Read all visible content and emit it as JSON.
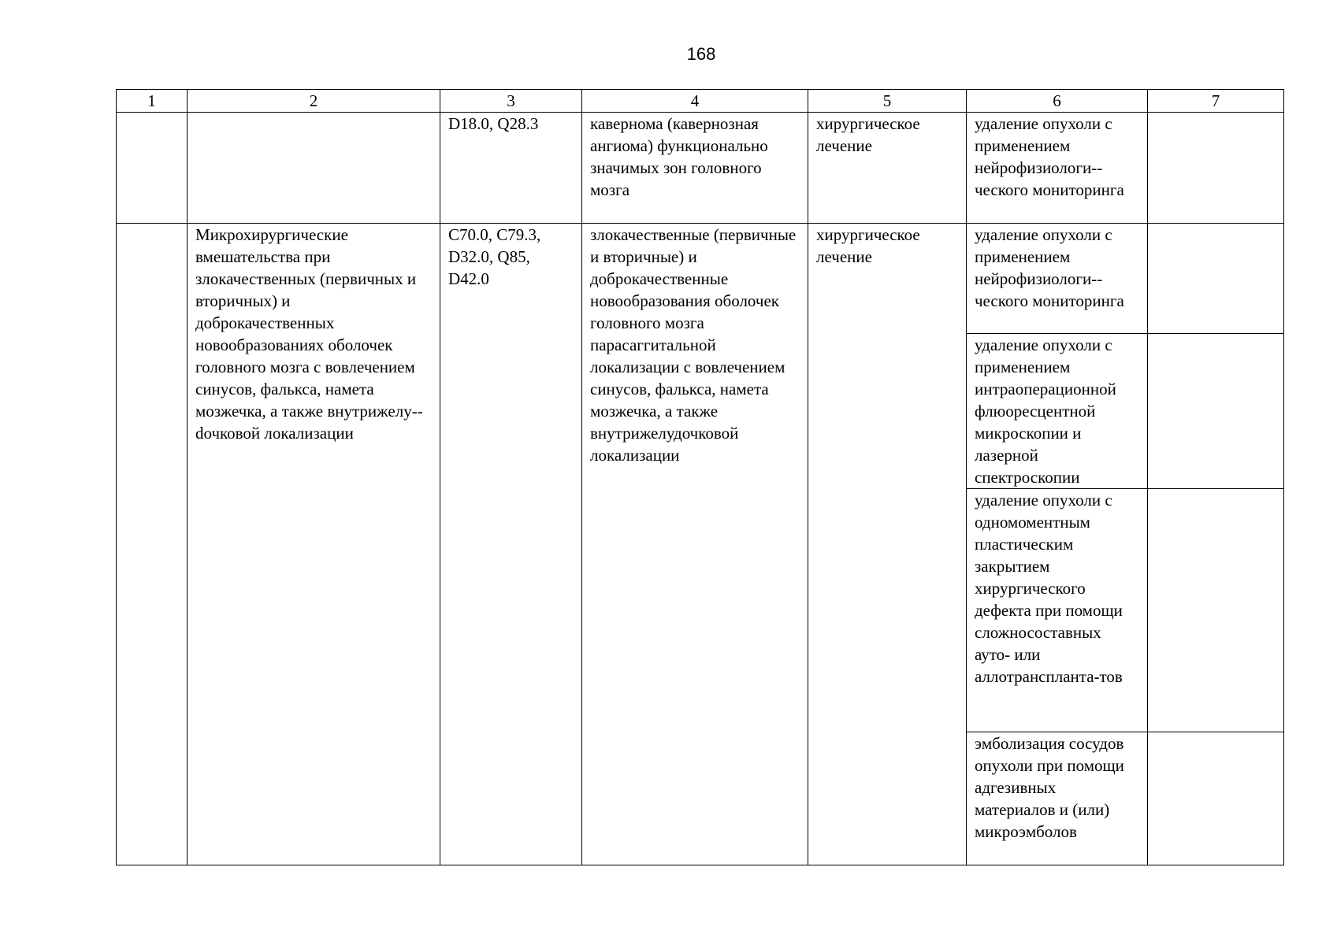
{
  "page_number": "168",
  "headers": [
    "1",
    "2",
    "3",
    "4",
    "5",
    "6",
    "7"
  ],
  "row1": {
    "c3": "D18.0, Q28.3",
    "c4": "кавернома (кавернозная ангиома) функционально значимых зон головного мозга",
    "c5": "хирургическое лечение",
    "c6": "удаление опухоли с применением нейрофизиологи-­ческого мониторинга"
  },
  "row2": {
    "c2": "Микрохирургические вмешательства при злокачественных (первичных и вторичных) и доброкачественных новообразованиях оболочек головного мозга с вовлечением синусов, фалькса, намета мозжечка, а также внутрижелу-­dочковой локализации",
    "c3": "C70.0, C79.3, D32.0, Q85, D42.0",
    "c4": "злокачественные (первичные и вторичные) и доброкачественные новообразования оболочек головного мозга парасаггитальной локализации с вовлечением синусов, фалькса, намета мозжечка, а также внутрижелудочковой локализации",
    "c5": "хирургическое лечение",
    "c6": [
      "удаление опухоли с применением нейрофизиологи-­ческого мониторинга",
      "удаление опухоли с применением интраоперационной флюоресцентной микроскопии и лазерной спектроскопии",
      "удаление опухоли с одномоментным пластическим закрытием хирургического дефекта при помощи сложносоставных ауто- или аллотрансплanta-­тов",
      "эмболизация сосудов опухоли при помощи адгезивных материалов и (или) микроэмболов"
    ]
  }
}
